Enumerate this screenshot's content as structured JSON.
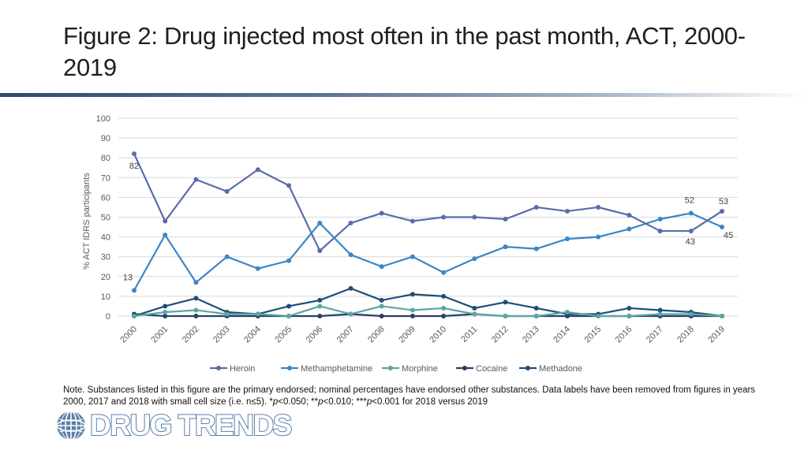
{
  "page": {
    "title": "Figure 2: Drug injected most often in the past month, ACT, 2000-2019",
    "note_parts": [
      {
        "text": "Note. Substances listed in this figure are the primary endorsed; nominal percentages have endorsed other substances. Data labels have been removed from figures in years 2000, 2017 and 2018 with small cell size (i.e. n≤5). *",
        "italic": false
      },
      {
        "text": "p",
        "italic": true
      },
      {
        "text": "<0.050; **",
        "italic": false
      },
      {
        "text": "p",
        "italic": true
      },
      {
        "text": "<0.010; ***",
        "italic": false
      },
      {
        "text": "p",
        "italic": true
      },
      {
        "text": "<0.001 for 2018 versus 2019",
        "italic": false
      }
    ],
    "logo_text": "DRUG TRENDS",
    "logo_icon": "globe-icon",
    "logo_color": "#5b7fa8"
  },
  "chart_data": {
    "type": "line",
    "x": [
      "2000",
      "2001",
      "2002",
      "2003",
      "2004",
      "2005",
      "2006",
      "2007",
      "2008",
      "2009",
      "2010",
      "2011",
      "2012",
      "2013",
      "2014",
      "2015",
      "2016",
      "2017",
      "2018",
      "2019"
    ],
    "ylabel": "% ACT IDRS participants",
    "ylim": [
      0,
      100
    ],
    "yticks": [
      0,
      10,
      20,
      30,
      40,
      50,
      60,
      70,
      80,
      90,
      100
    ],
    "grid": true,
    "legend_position": "bottom",
    "series": [
      {
        "name": "Heroin",
        "color": "#5b6bad",
        "values": [
          82,
          48,
          69,
          63,
          74,
          66,
          33,
          47,
          52,
          48,
          50,
          50,
          49,
          55,
          53,
          55,
          51,
          43,
          43,
          53
        ]
      },
      {
        "name": "Methamphetamine",
        "color": "#3b86c6",
        "values": [
          13,
          41,
          17,
          30,
          24,
          28,
          47,
          31,
          25,
          30,
          22,
          29,
          35,
          34,
          39,
          40,
          44,
          49,
          52,
          45
        ]
      },
      {
        "name": "Morphine",
        "color": "#5aa7a3",
        "values": [
          0,
          2,
          3,
          1,
          1,
          0,
          5,
          1,
          5,
          3,
          4,
          1,
          0,
          0,
          2,
          0,
          0,
          1,
          1,
          0
        ]
      },
      {
        "name": "Cocaine",
        "color": "#2a3f68",
        "values": [
          1,
          0,
          0,
          0,
          0,
          0,
          0,
          1,
          0,
          0,
          0,
          1,
          0,
          0,
          0,
          0,
          0,
          0,
          0,
          0
        ]
      },
      {
        "name": "Methadone",
        "color": "#1f4e79",
        "values": [
          0,
          5,
          9,
          2,
          1,
          5,
          8,
          14,
          8,
          11,
          10,
          4,
          7,
          4,
          1,
          1,
          4,
          3,
          2,
          0
        ]
      }
    ],
    "data_labels": [
      {
        "series": "Heroin",
        "x": "2000",
        "text": "82"
      },
      {
        "series": "Methamphetamine",
        "x": "2000",
        "text": "13"
      },
      {
        "series": "Methamphetamine",
        "x": "2018",
        "text": "52"
      },
      {
        "series": "Heroin",
        "x": "2018",
        "text": "43"
      },
      {
        "series": "Heroin",
        "x": "2019",
        "text": "53"
      },
      {
        "series": "Methamphetamine",
        "x": "2019",
        "text": "45"
      }
    ]
  }
}
